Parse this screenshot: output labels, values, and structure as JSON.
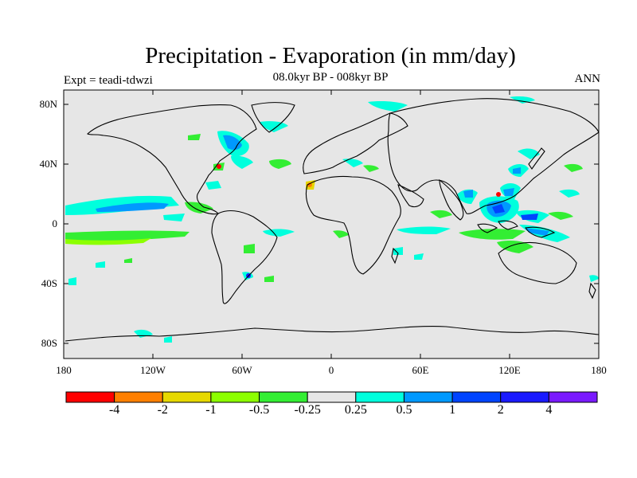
{
  "title": "Precipitation - Evaporation (in mm/day)",
  "subtitle": "08.0kyr BP - 008kyr BP",
  "left_label": "Expt = teadi-tdwzi",
  "right_label": "ANN",
  "lat_labels": [
    "80N",
    "40N",
    "0",
    "40S",
    "80S"
  ],
  "lon_labels": [
    "180",
    "120W",
    "60W",
    "0",
    "60E",
    "120E",
    "180"
  ],
  "colorbar": {
    "colors": [
      "#ff0000",
      "#ff7f00",
      "#e6d800",
      "#8cff00",
      "#33ee33",
      "#e6e6e6",
      "#00ffdd",
      "#0099ff",
      "#0044ff",
      "#1a1aff",
      "#7a1aff"
    ],
    "labels": [
      "-4",
      "-2",
      "-1",
      "-0.5",
      "-0.25",
      "0.25",
      "0.5",
      "1",
      "2",
      "4"
    ]
  },
  "colors": {
    "ocean": "#e6e6e6",
    "coast": "#000000"
  }
}
